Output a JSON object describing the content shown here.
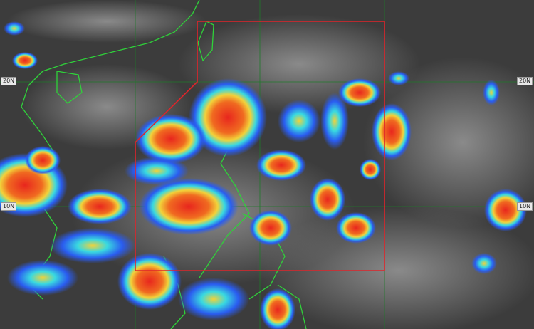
{
  "latitude_labels": {
    "left_20": "20N",
    "right_20": "20N",
    "left_10": "10N",
    "right_10": "10N"
  },
  "colors": {
    "background": "#3c3c3c",
    "coastline": "#2fd23a",
    "grid": "#1f7a2a",
    "area_box": "#e0242a",
    "cloud_high": "#e8261e",
    "cloud_mid": "#f5a020",
    "cloud_low": "#2a5cf0",
    "cloud_edge": "#39d9e0"
  }
}
